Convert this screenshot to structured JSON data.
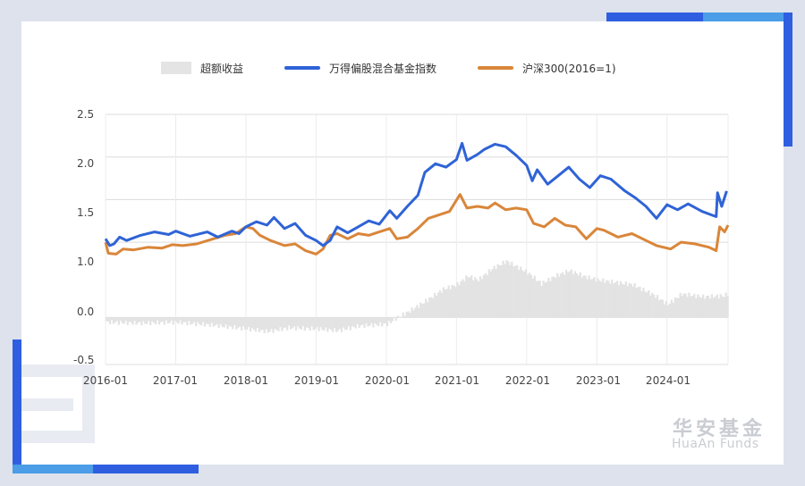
{
  "colors": {
    "excess": "#e3e3e3",
    "fund_index": "#2f63d6",
    "csi300": "#d9863a",
    "grid": "#dcdcdc",
    "accent_blue": "#2f5fe0",
    "accent_light": "#4a9de6"
  },
  "brand": {
    "cn": "华安基金",
    "en": "HuaAn Funds"
  },
  "chart_data": {
    "type": "line",
    "legend_position": "top",
    "grid": true,
    "series": [
      {
        "name": "超额收益",
        "kind": "area",
        "axis": "lower",
        "points": [
          [
            2016.0,
            -0.05
          ],
          [
            2016.5,
            -0.06
          ],
          [
            2017.0,
            -0.05
          ],
          [
            2017.5,
            -0.08
          ],
          [
            2018.0,
            -0.12
          ],
          [
            2018.3,
            -0.15
          ],
          [
            2018.6,
            -0.11
          ],
          [
            2019.0,
            -0.12
          ],
          [
            2019.3,
            -0.14
          ],
          [
            2019.6,
            -0.09
          ],
          [
            2020.0,
            -0.07
          ],
          [
            2020.15,
            0.0
          ],
          [
            2020.3,
            0.06
          ],
          [
            2020.5,
            0.15
          ],
          [
            2020.8,
            0.3
          ],
          [
            2021.0,
            0.35
          ],
          [
            2021.15,
            0.44
          ],
          [
            2021.3,
            0.4
          ],
          [
            2021.5,
            0.52
          ],
          [
            2021.7,
            0.6
          ],
          [
            2021.9,
            0.52
          ],
          [
            2022.0,
            0.48
          ],
          [
            2022.2,
            0.36
          ],
          [
            2022.4,
            0.44
          ],
          [
            2022.6,
            0.5
          ],
          [
            2022.8,
            0.44
          ],
          [
            2023.0,
            0.4
          ],
          [
            2023.2,
            0.38
          ],
          [
            2023.5,
            0.35
          ],
          [
            2023.8,
            0.24
          ],
          [
            2024.0,
            0.14
          ],
          [
            2024.2,
            0.25
          ],
          [
            2024.5,
            0.22
          ],
          [
            2024.8,
            0.23
          ],
          [
            2024.87,
            0.26
          ]
        ]
      },
      {
        "name": "万得偏股混合基金指数",
        "kind": "line",
        "axis": "upper",
        "points": [
          [
            2016.0,
            1.04
          ],
          [
            2016.06,
            0.96
          ],
          [
            2016.12,
            0.98
          ],
          [
            2016.2,
            1.06
          ],
          [
            2016.3,
            1.02
          ],
          [
            2016.5,
            1.08
          ],
          [
            2016.7,
            1.12
          ],
          [
            2016.9,
            1.09
          ],
          [
            2017.0,
            1.13
          ],
          [
            2017.2,
            1.07
          ],
          [
            2017.45,
            1.12
          ],
          [
            2017.6,
            1.06
          ],
          [
            2017.8,
            1.13
          ],
          [
            2017.9,
            1.1
          ],
          [
            2018.0,
            1.18
          ],
          [
            2018.15,
            1.24
          ],
          [
            2018.3,
            1.2
          ],
          [
            2018.4,
            1.29
          ],
          [
            2018.55,
            1.16
          ],
          [
            2018.7,
            1.22
          ],
          [
            2018.85,
            1.08
          ],
          [
            2019.0,
            1.02
          ],
          [
            2019.1,
            0.96
          ],
          [
            2019.2,
            1.02
          ],
          [
            2019.3,
            1.18
          ],
          [
            2019.45,
            1.11
          ],
          [
            2019.6,
            1.18
          ],
          [
            2019.75,
            1.25
          ],
          [
            2019.9,
            1.21
          ],
          [
            2020.05,
            1.37
          ],
          [
            2020.15,
            1.28
          ],
          [
            2020.3,
            1.42
          ],
          [
            2020.45,
            1.55
          ],
          [
            2020.55,
            1.82
          ],
          [
            2020.7,
            1.92
          ],
          [
            2020.85,
            1.88
          ],
          [
            2021.0,
            1.97
          ],
          [
            2021.08,
            2.16
          ],
          [
            2021.15,
            1.96
          ],
          [
            2021.3,
            2.03
          ],
          [
            2021.4,
            2.09
          ],
          [
            2021.55,
            2.15
          ],
          [
            2021.7,
            2.12
          ],
          [
            2021.85,
            2.02
          ],
          [
            2022.0,
            1.9
          ],
          [
            2022.08,
            1.72
          ],
          [
            2022.15,
            1.85
          ],
          [
            2022.3,
            1.68
          ],
          [
            2022.45,
            1.78
          ],
          [
            2022.6,
            1.88
          ],
          [
            2022.75,
            1.74
          ],
          [
            2022.9,
            1.64
          ],
          [
            2023.05,
            1.78
          ],
          [
            2023.2,
            1.74
          ],
          [
            2023.4,
            1.6
          ],
          [
            2023.55,
            1.52
          ],
          [
            2023.7,
            1.42
          ],
          [
            2023.85,
            1.28
          ],
          [
            2024.0,
            1.44
          ],
          [
            2024.15,
            1.38
          ],
          [
            2024.3,
            1.45
          ],
          [
            2024.5,
            1.36
          ],
          [
            2024.7,
            1.3
          ],
          [
            2024.72,
            1.58
          ],
          [
            2024.78,
            1.42
          ],
          [
            2024.85,
            1.6
          ]
        ]
      },
      {
        "name": "沪深300(2016=1)",
        "kind": "line",
        "axis": "upper",
        "points": [
          [
            2016.0,
            1.0
          ],
          [
            2016.04,
            0.87
          ],
          [
            2016.15,
            0.86
          ],
          [
            2016.25,
            0.92
          ],
          [
            2016.4,
            0.91
          ],
          [
            2016.6,
            0.94
          ],
          [
            2016.8,
            0.93
          ],
          [
            2016.95,
            0.97
          ],
          [
            2017.1,
            0.96
          ],
          [
            2017.3,
            0.98
          ],
          [
            2017.5,
            1.03
          ],
          [
            2017.7,
            1.08
          ],
          [
            2017.85,
            1.1
          ],
          [
            2018.0,
            1.18
          ],
          [
            2018.1,
            1.16
          ],
          [
            2018.2,
            1.08
          ],
          [
            2018.35,
            1.02
          ],
          [
            2018.55,
            0.96
          ],
          [
            2018.7,
            0.98
          ],
          [
            2018.85,
            0.9
          ],
          [
            2019.0,
            0.86
          ],
          [
            2019.1,
            0.92
          ],
          [
            2019.2,
            1.08
          ],
          [
            2019.3,
            1.1
          ],
          [
            2019.45,
            1.04
          ],
          [
            2019.6,
            1.1
          ],
          [
            2019.75,
            1.08
          ],
          [
            2019.9,
            1.12
          ],
          [
            2020.05,
            1.16
          ],
          [
            2020.15,
            1.04
          ],
          [
            2020.3,
            1.06
          ],
          [
            2020.45,
            1.16
          ],
          [
            2020.6,
            1.28
          ],
          [
            2020.75,
            1.32
          ],
          [
            2020.9,
            1.36
          ],
          [
            2021.05,
            1.56
          ],
          [
            2021.15,
            1.4
          ],
          [
            2021.3,
            1.42
          ],
          [
            2021.45,
            1.4
          ],
          [
            2021.55,
            1.46
          ],
          [
            2021.7,
            1.38
          ],
          [
            2021.85,
            1.4
          ],
          [
            2022.0,
            1.38
          ],
          [
            2022.1,
            1.22
          ],
          [
            2022.25,
            1.18
          ],
          [
            2022.4,
            1.28
          ],
          [
            2022.55,
            1.2
          ],
          [
            2022.7,
            1.18
          ],
          [
            2022.85,
            1.04
          ],
          [
            2023.0,
            1.16
          ],
          [
            2023.1,
            1.14
          ],
          [
            2023.3,
            1.06
          ],
          [
            2023.5,
            1.1
          ],
          [
            2023.7,
            1.02
          ],
          [
            2023.85,
            0.96
          ],
          [
            2024.05,
            0.92
          ],
          [
            2024.2,
            1.0
          ],
          [
            2024.4,
            0.98
          ],
          [
            2024.6,
            0.94
          ],
          [
            2024.7,
            0.9
          ],
          [
            2024.75,
            1.18
          ],
          [
            2024.82,
            1.12
          ],
          [
            2024.87,
            1.2
          ]
        ]
      }
    ],
    "x_ticks": [
      "2016-01",
      "2017-01",
      "2018-01",
      "2019-01",
      "2020-01",
      "2021-01",
      "2022-01",
      "2023-01",
      "2024-01"
    ],
    "xlim": [
      2016.0,
      2024.87
    ],
    "upper_axis": {
      "ticks": [
        "2.5",
        "2.0",
        "1.5",
        "1.0"
      ],
      "ylim": [
        0.55,
        2.5
      ]
    },
    "lower_axis": {
      "ticks": [
        "0.0",
        "-0.5"
      ],
      "ylim": [
        -0.5,
        0.85
      ]
    }
  }
}
